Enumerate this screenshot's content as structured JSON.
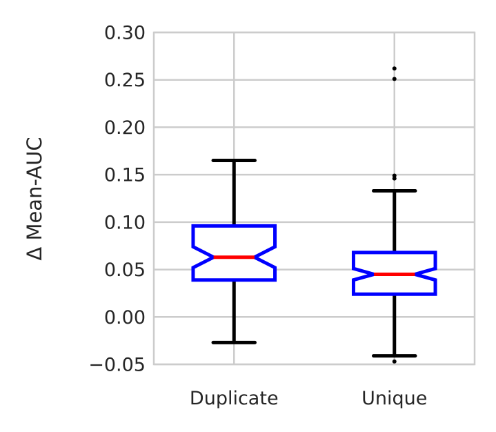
{
  "chart_data": {
    "type": "boxplot",
    "notched": true,
    "ylabel": "Δ Mean-AUC",
    "ylim": [
      -0.05,
      0.3
    ],
    "yticks": [
      "0.30",
      "0.25",
      "0.20",
      "0.15",
      "0.10",
      "0.05",
      "0.00",
      "−0.05"
    ],
    "ytick_values": [
      0.3,
      0.25,
      0.2,
      0.15,
      0.1,
      0.05,
      0.0,
      -0.05
    ],
    "categories": [
      "Duplicate",
      "Unique"
    ],
    "grid": true,
    "colors": {
      "box": "#0000ff",
      "median": "#ff0000",
      "whisker": "#000000",
      "grid": "#cccccc"
    },
    "boxes": [
      {
        "name": "Duplicate",
        "whisker_low": -0.027,
        "q1": 0.039,
        "median": 0.063,
        "q3": 0.096,
        "whisker_high": 0.165,
        "notch_low": 0.052,
        "notch_high": 0.074,
        "fliers": []
      },
      {
        "name": "Unique",
        "whisker_low": -0.041,
        "q1": 0.024,
        "median": 0.045,
        "q3": 0.068,
        "whisker_high": 0.133,
        "notch_low": 0.039,
        "notch_high": 0.051,
        "fliers": [
          0.262,
          0.251,
          0.149,
          0.146,
          -0.047
        ]
      }
    ]
  }
}
